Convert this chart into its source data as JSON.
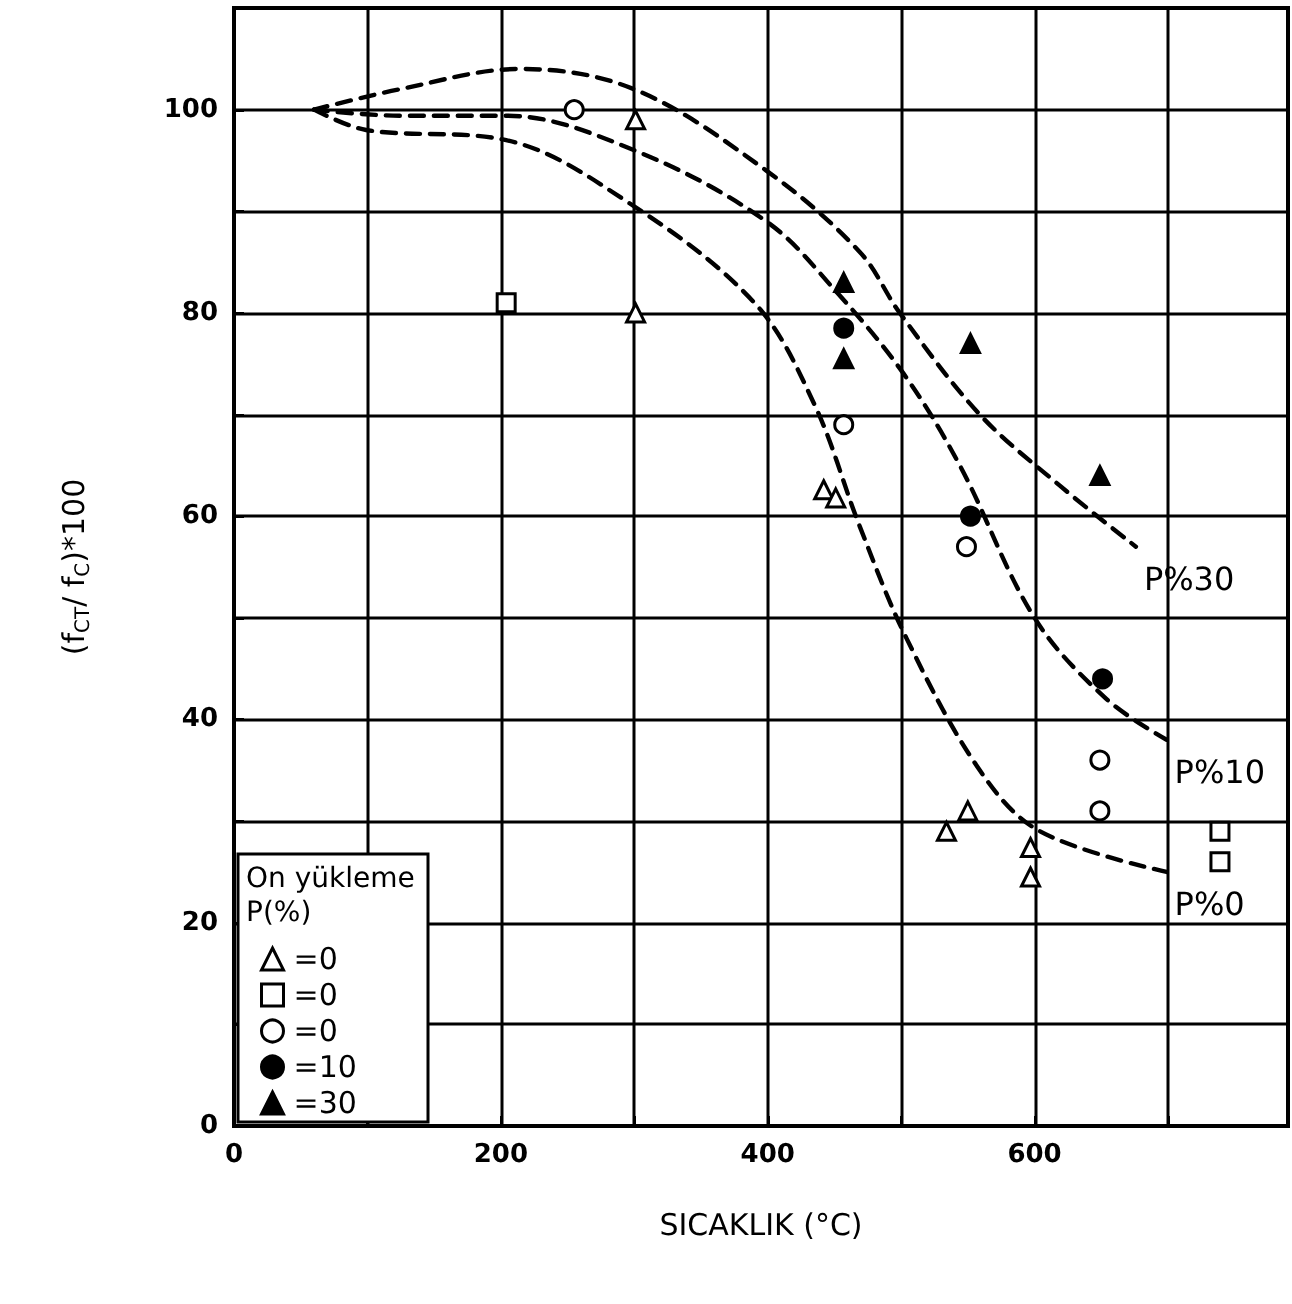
{
  "chart_data": {
    "type": "scatter",
    "xlabel": "SICAKLIK (°C)",
    "ylabel": "(f$_{CT}$/ f$_{C}$)*100",
    "legend_title": "On yükleme\nP(%)",
    "xlim": [
      0,
      790
    ],
    "ylim": [
      0,
      110
    ],
    "xticks": [
      0,
      {
        "value": 100,
        "label": null
      },
      200,
      {
        "value": 300,
        "label": null
      },
      400,
      {
        "value": 500,
        "label": null
      },
      600,
      {
        "value": 700,
        "label": null
      }
    ],
    "yticks": [
      0,
      {
        "value": 10,
        "label": null
      },
      20,
      {
        "value": 30,
        "label": null
      },
      40,
      {
        "value": 50,
        "label": null
      },
      60,
      {
        "value": 70,
        "label": null
      },
      80,
      {
        "value": 90,
        "label": null
      },
      100
    ],
    "grid": true,
    "legend": "bottom left",
    "series": [
      {
        "name": "=0",
        "marker": "triangle",
        "color": "#ffffff",
        "x": [
          301,
          301,
          442,
          451,
          534,
          550,
          597,
          597
        ],
        "values": [
          99,
          80,
          62.6,
          61.8,
          29,
          31,
          27.4,
          24.5
        ]
      },
      {
        "name": "=0",
        "marker": "square",
        "color": "#ffffff",
        "x": [
          204,
          739,
          739
        ],
        "values": [
          81,
          29,
          26
        ]
      },
      {
        "name": "=0",
        "marker": "circle",
        "color": "#ffffff",
        "x": [
          255,
          457,
          549,
          649,
          649
        ],
        "values": [
          100,
          69,
          57,
          36,
          31
        ]
      },
      {
        "name": "=10",
        "marker": "circle",
        "color": "#000000",
        "x": [
          457,
          552,
          651
        ],
        "values": [
          78.5,
          60,
          44
        ]
      },
      {
        "name": "=30",
        "marker": "triangle",
        "color": "#000000",
        "x": [
          457,
          457,
          552,
          649
        ],
        "values": [
          83,
          75.5,
          77,
          64
        ]
      },
      {
        "type": "line",
        "name": "P%30",
        "line_style": "dashed",
        "marker": "none",
        "color": "#000000",
        "x": [
          60,
          124,
          214,
          300,
          399,
          469,
          499,
          559,
          619,
          676
        ],
        "values": [
          100,
          102,
          104,
          102,
          94,
          86,
          80,
          70,
          63,
          57
        ]
      },
      {
        "type": "line",
        "name": "P%10",
        "line_style": "dashed",
        "marker": "none",
        "color": "#000000",
        "x": [
          60,
          124,
          204,
          300,
          399,
          452,
          502,
          544,
          600,
          654,
          699
        ],
        "values": [
          100,
          99.4,
          99.4,
          96,
          89,
          82,
          74,
          65,
          50,
          42,
          38
        ]
      },
      {
        "type": "line",
        "name": "P%0",
        "line_style": "dashed",
        "marker": "none",
        "color": "#000000",
        "x": [
          60,
          99,
          204,
          294,
          390,
          435,
          469,
          504,
          559,
          604,
          699
        ],
        "values": [
          100,
          98,
          97,
          91,
          81,
          71,
          59,
          48,
          35,
          29,
          25
        ]
      }
    ]
  }
}
